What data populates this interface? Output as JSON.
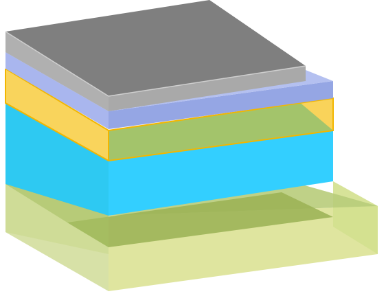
{
  "diagram": {
    "kind": "layer-stack-3d",
    "layers": [
      {
        "id": "substrate",
        "position": "bottom",
        "colors": {
          "top": "#9fb86a",
          "front": "#dde49a",
          "side": "#d3e08e",
          "edge": "#c8d68a"
        }
      },
      {
        "id": "cyan-layer",
        "position": "lower-middle",
        "colors": {
          "top": "#2ec9f2",
          "front": "#33cfff",
          "side": "#25b8e8"
        }
      },
      {
        "id": "green-layer",
        "position": "middle",
        "colors": {
          "top": "#9cb860",
          "front": "#a3c46b",
          "side": "#b5cf73"
        }
      },
      {
        "id": "yellow-outline-layer",
        "position": "middle-outline",
        "colors": {
          "stroke": "#f2b600",
          "fill": "#f9d35a"
        }
      },
      {
        "id": "blue-layer",
        "position": "upper",
        "colors": {
          "top": "#a9b6ee",
          "front": "#95a6e4",
          "side": "#8c9ce0"
        }
      },
      {
        "id": "gray-cap",
        "position": "top",
        "colors": {
          "top": "#7f7f7f",
          "front": "#aaaaaa",
          "side": "#b4b4b4",
          "edge": "#cfcfcf"
        }
      }
    ]
  }
}
